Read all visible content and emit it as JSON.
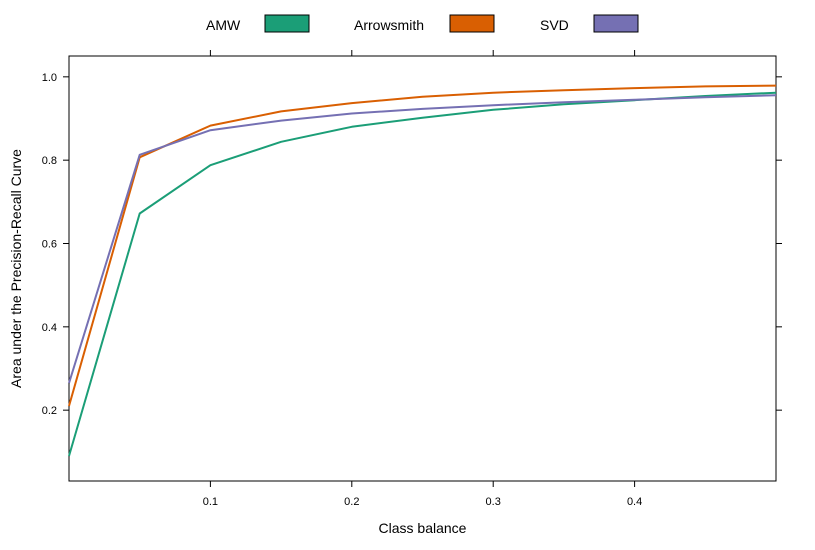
{
  "chart_data": {
    "type": "line",
    "xlabel": "Class balance",
    "ylabel": "Area under the Precision-Recall Curve",
    "xlim": [
      0.0,
      0.5
    ],
    "ylim": [
      0.03,
      1.05
    ],
    "x_ticks": [
      0.1,
      0.2,
      0.3,
      0.4
    ],
    "y_ticks": [
      0.2,
      0.4,
      0.6,
      0.8,
      1.0
    ],
    "x_tick_labels": [
      "0.1",
      "0.2",
      "0.3",
      "0.4"
    ],
    "y_tick_labels": [
      "0.2",
      "0.4",
      "0.6",
      "0.8",
      "1.0"
    ],
    "grid": false,
    "legend_position": "top",
    "series": [
      {
        "name": "AMW",
        "color": "#1b9e77",
        "x": [
          0.0,
          0.05,
          0.1,
          0.15,
          0.2,
          0.25,
          0.3,
          0.35,
          0.4,
          0.45,
          0.5
        ],
        "y": [
          0.09,
          0.672,
          0.788,
          0.844,
          0.88,
          0.902,
          0.921,
          0.934,
          0.944,
          0.954,
          0.962
        ]
      },
      {
        "name": "Arrowsmith",
        "color": "#d95f02",
        "x": [
          0.0,
          0.05,
          0.1,
          0.15,
          0.2,
          0.25,
          0.3,
          0.35,
          0.4,
          0.45,
          0.5
        ],
        "y": [
          0.21,
          0.807,
          0.883,
          0.917,
          0.937,
          0.952,
          0.962,
          0.968,
          0.973,
          0.977,
          0.979
        ]
      },
      {
        "name": "SVD",
        "color": "#7570b3",
        "x": [
          0.0,
          0.05,
          0.1,
          0.15,
          0.2,
          0.25,
          0.3,
          0.35,
          0.4,
          0.45,
          0.5
        ],
        "y": [
          0.265,
          0.813,
          0.872,
          0.895,
          0.912,
          0.923,
          0.932,
          0.939,
          0.945,
          0.951,
          0.956
        ]
      }
    ]
  }
}
